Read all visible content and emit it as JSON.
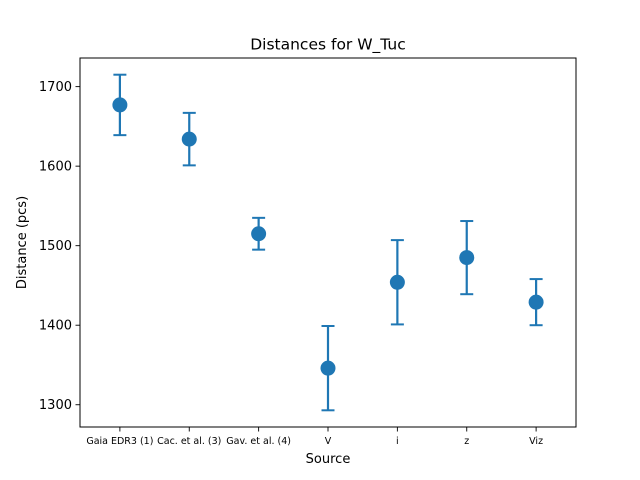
{
  "chart_data": {
    "type": "scatter",
    "title": "Distances for W_Tuc",
    "xlabel": "Source",
    "ylabel": "Distance (pcs)",
    "categories": [
      "Gaia EDR3 (1)",
      "Cac. et al. (3)",
      "Gav. et al. (4)",
      "V",
      "i",
      "z",
      "Viz"
    ],
    "values": [
      1677,
      1634,
      1515,
      1346,
      1454,
      1485,
      1429
    ],
    "errors": [
      38,
      33,
      20,
      53,
      53,
      46,
      29
    ],
    "ylim": [
      1272,
      1736
    ],
    "yticks": [
      1300,
      1400,
      1500,
      1600,
      1700
    ],
    "grid": false,
    "color": "#1f77b4"
  }
}
